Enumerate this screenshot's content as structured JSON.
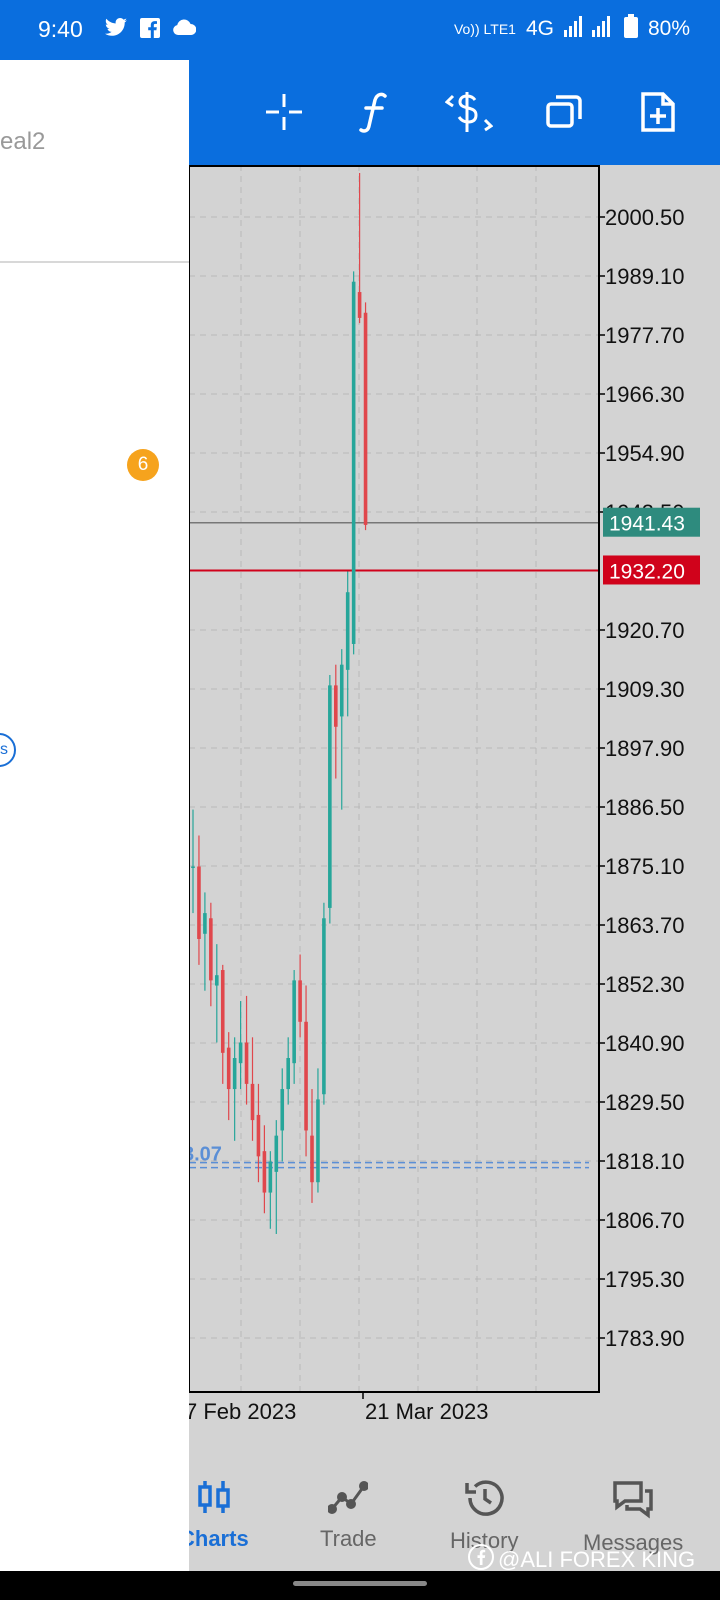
{
  "status_bar": {
    "time": "9:40",
    "network_badge": "Vo)) LTE1",
    "network": "4G",
    "battery": "80%",
    "icons": [
      "twitter-icon",
      "facebook-icon",
      "cloud-icon",
      "signal-icon",
      "battery-icon"
    ]
  },
  "toolbar": {
    "icons": [
      "crosshair-icon",
      "indicators-icon",
      "trade-icon",
      "windows-icon",
      "new-order-icon"
    ]
  },
  "drawer": {
    "account_label": "eal2",
    "badge_count": "6",
    "circle_glyph": "s"
  },
  "chart_data": {
    "type": "candlestick",
    "price_axis": [
      "2000.50",
      "1989.10",
      "1977.70",
      "1966.30",
      "1954.90",
      "1943.50",
      "1920.70",
      "1909.30",
      "1897.90",
      "1886.50",
      "1875.10",
      "1863.70",
      "1852.30",
      "1840.90",
      "1829.50",
      "1818.10",
      "1806.70",
      "1795.30",
      "1783.90"
    ],
    "date_labels": [
      "7 Feb 2023",
      "21 Mar 2023"
    ],
    "bid_label": "1941.43",
    "ask_label": "1932.20",
    "order_label": "3.07",
    "colors": {
      "up": "#26a69a",
      "down": "#e0474c",
      "bid": "#2e8b7e",
      "ask": "#d0021b",
      "order": "#5b8fd6",
      "background": "#d3d3d3"
    },
    "candles": [
      {
        "o": 1875,
        "h": 1886,
        "l": 1866,
        "c": 1875
      },
      {
        "o": 1875,
        "h": 1881,
        "l": 1856,
        "c": 1861
      },
      {
        "o": 1862,
        "h": 1870,
        "l": 1851,
        "c": 1866
      },
      {
        "o": 1865,
        "h": 1868,
        "l": 1848,
        "c": 1853
      },
      {
        "o": 1852,
        "h": 1860,
        "l": 1841,
        "c": 1854
      },
      {
        "o": 1855,
        "h": 1856,
        "l": 1833,
        "c": 1839
      },
      {
        "o": 1840,
        "h": 1843,
        "l": 1826,
        "c": 1832
      },
      {
        "o": 1832,
        "h": 1842,
        "l": 1822,
        "c": 1838
      },
      {
        "o": 1837,
        "h": 1849,
        "l": 1832,
        "c": 1841
      },
      {
        "o": 1841,
        "h": 1850,
        "l": 1829,
        "c": 1833
      },
      {
        "o": 1833,
        "h": 1842,
        "l": 1822,
        "c": 1826
      },
      {
        "o": 1827,
        "h": 1833,
        "l": 1814,
        "c": 1819
      },
      {
        "o": 1820,
        "h": 1825,
        "l": 1808,
        "c": 1812
      },
      {
        "o": 1812,
        "h": 1820,
        "l": 1805,
        "c": 1818
      },
      {
        "o": 1816,
        "h": 1826,
        "l": 1804,
        "c": 1823
      },
      {
        "o": 1824,
        "h": 1836,
        "l": 1818,
        "c": 1832
      },
      {
        "o": 1832,
        "h": 1842,
        "l": 1829,
        "c": 1838
      },
      {
        "o": 1837,
        "h": 1855,
        "l": 1833,
        "c": 1853
      },
      {
        "o": 1853,
        "h": 1858,
        "l": 1842,
        "c": 1845
      },
      {
        "o": 1845,
        "h": 1852,
        "l": 1819,
        "c": 1824
      },
      {
        "o": 1823,
        "h": 1832,
        "l": 1810,
        "c": 1814
      },
      {
        "o": 1814,
        "h": 1836,
        "l": 1812,
        "c": 1830
      },
      {
        "o": 1831,
        "h": 1868,
        "l": 1829,
        "c": 1865
      },
      {
        "o": 1867,
        "h": 1912,
        "l": 1864,
        "c": 1910
      },
      {
        "o": 1910,
        "h": 1914,
        "l": 1892,
        "c": 1902
      },
      {
        "o": 1904,
        "h": 1917,
        "l": 1886,
        "c": 1914
      },
      {
        "o": 1913,
        "h": 1932,
        "l": 1904,
        "c": 1928
      },
      {
        "o": 1918,
        "h": 1990,
        "l": 1916,
        "c": 1988
      },
      {
        "o": 1986,
        "h": 2009,
        "l": 1980,
        "c": 1981
      },
      {
        "o": 1982,
        "h": 1984,
        "l": 1940,
        "c": 1941
      }
    ]
  },
  "bottom_nav": {
    "items": [
      {
        "label": "Charts",
        "active": true
      },
      {
        "label": "Trade",
        "active": false
      },
      {
        "label": "History",
        "active": false
      },
      {
        "label": "Messages",
        "active": false
      }
    ],
    "watermark": "@ALI FOREX KING"
  }
}
